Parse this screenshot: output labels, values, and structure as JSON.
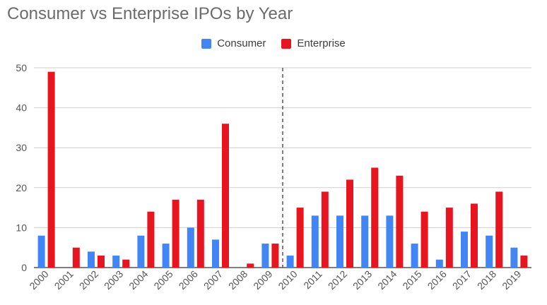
{
  "chart_data": {
    "type": "bar",
    "title": "Consumer vs Enterprise IPOs by Year",
    "categories": [
      "2000",
      "2001",
      "2002",
      "2003",
      "2004",
      "2005",
      "2006",
      "2007",
      "2008",
      "2009",
      "2010",
      "2011",
      "2012",
      "2013",
      "2014",
      "2015",
      "2016",
      "2017",
      "2018",
      "2019"
    ],
    "series": [
      {
        "name": "Consumer",
        "color": "#4285f4",
        "values": [
          8,
          0,
          4,
          3,
          8,
          6,
          10,
          7,
          0,
          6,
          3,
          13,
          13,
          13,
          13,
          6,
          2,
          9,
          8,
          5
        ]
      },
      {
        "name": "Enterprise",
        "color": "#e8141f",
        "values": [
          49,
          5,
          3,
          2,
          14,
          17,
          17,
          36,
          1,
          6,
          15,
          19,
          22,
          25,
          23,
          14,
          15,
          16,
          19,
          3
        ]
      }
    ],
    "ylim": [
      0,
      50
    ],
    "yticks": [
      0,
      10,
      20,
      30,
      40,
      50
    ],
    "xlabel": "",
    "ylabel": "",
    "legend_position": "top-center",
    "divider_after_category": "2009"
  }
}
